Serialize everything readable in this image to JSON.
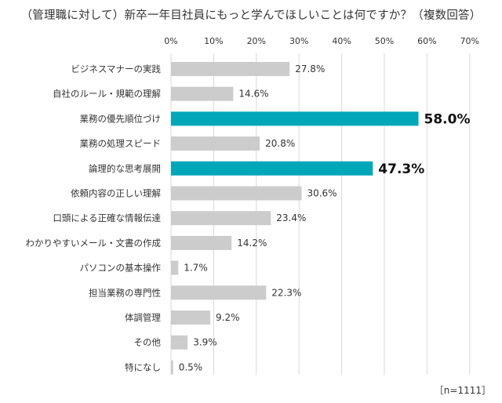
{
  "chart_data": {
    "type": "bar",
    "orientation": "horizontal",
    "title": "（管理職に対して）新卒一年目社員にもっと学んでほしいことは何ですか？（複数回答）",
    "sample_note": "［n=1111］",
    "x_ticks": [
      "0%",
      "10%",
      "20%",
      "30%",
      "40%",
      "50%",
      "60%",
      "70%"
    ],
    "xlim": [
      0,
      70
    ],
    "grid": true,
    "categories": [
      "ビジネスマナーの実践",
      "自社のルール・規範の理解",
      "業務の優先順位づけ",
      "業務の処理スピード",
      "論理的な思考展開",
      "依頼内容の正しい理解",
      "口頭による正確な情報伝達",
      "わかりやすいメール・文書の作成",
      "パソコンの基本操作",
      "担当業務の専門性",
      "体調管理",
      "その他",
      "特になし"
    ],
    "values": [
      27.8,
      14.6,
      58.0,
      20.8,
      47.3,
      30.6,
      23.4,
      14.2,
      1.7,
      22.3,
      9.2,
      3.9,
      0.5
    ],
    "value_labels": [
      "27.8%",
      "14.6%",
      "58.0%",
      "20.8%",
      "47.3%",
      "30.6%",
      "23.4%",
      "14.2%",
      "1.7%",
      "22.3%",
      "9.2%",
      "3.9%",
      "0.5%"
    ],
    "highlighted": [
      2,
      4
    ],
    "colors": {
      "bar": "#cccccc",
      "highlight": "#00a7b8",
      "grid": "#d9d9d9",
      "text": "#333333"
    }
  }
}
